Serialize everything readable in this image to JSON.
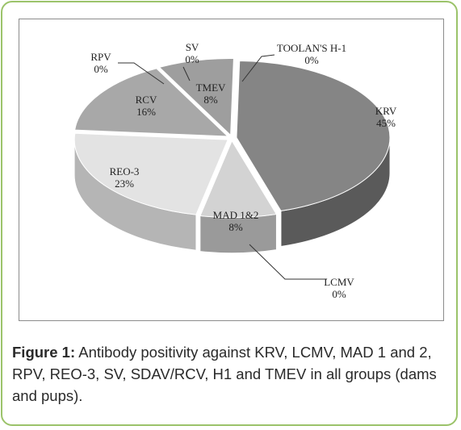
{
  "chart_data": {
    "type": "pie",
    "style": "3d-exploded",
    "slices": [
      {
        "label": "KRV",
        "value": 45,
        "display": "45%",
        "color": "#858585",
        "side": "#5a5a5a"
      },
      {
        "label": "LCMV",
        "value": 0,
        "display": "0%",
        "color": "#777777",
        "side": "#555555"
      },
      {
        "label": "MAD 1&2",
        "value": 8,
        "display": "8%",
        "color": "#d3d3d3",
        "side": "#9a9a9a"
      },
      {
        "label": "REO-3",
        "value": 23,
        "display": "23%",
        "color": "#e3e3e3",
        "side": "#b5b5b5"
      },
      {
        "label": "RCV",
        "value": 16,
        "display": "16%",
        "color": "#a8a8a8",
        "side": "#808080"
      },
      {
        "label": "RPV",
        "value": 0,
        "display": "0%",
        "color": "#909090",
        "side": "#707070"
      },
      {
        "label": "SV",
        "value": 0,
        "display": "0%",
        "color": "#909090",
        "side": "#707070"
      },
      {
        "label": "TMEV",
        "value": 8,
        "display": "8%",
        "color": "#9e9e9e",
        "side": "#7a7a7a"
      },
      {
        "label": "TOOLAN'S H-1",
        "value": 0,
        "display": "0%",
        "color": "#909090",
        "side": "#707070"
      }
    ]
  },
  "caption": {
    "figure_label": "Figure 1:",
    "text": " Antibody positivity against KRV, LCMV, MAD 1 and 2, RPV, REO-3, SV, SDAV/RCV, H1 and TMEV in all groups (dams and pups)."
  }
}
